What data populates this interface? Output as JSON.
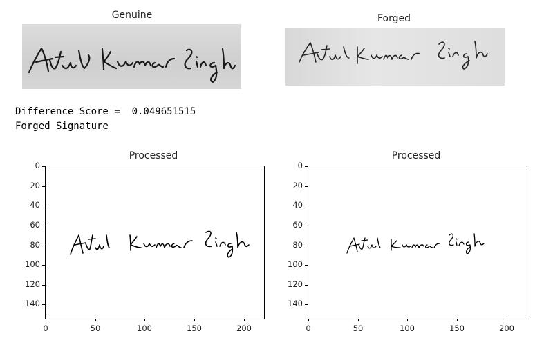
{
  "panels": {
    "genuine_title": "Genuine",
    "forged_title": "Forged",
    "processed_left_title": "Processed",
    "processed_right_title": "Processed",
    "genuine_signature_text": "Atul Kumar Singh",
    "forged_signature_text": "Atul Kumar Singh"
  },
  "output": {
    "score_line": "Difference Score =  0.049651515",
    "verdict_line": "Forged Signature"
  },
  "chart_data": [
    {
      "type": "image",
      "title": "Processed",
      "x_ticks": [
        "0",
        "50",
        "100",
        "150",
        "200"
      ],
      "y_ticks": [
        "0",
        "20",
        "40",
        "60",
        "80",
        "100",
        "120",
        "140"
      ],
      "xlim": [
        0,
        220
      ],
      "ylim": [
        155,
        0
      ]
    },
    {
      "type": "image",
      "title": "Processed",
      "x_ticks": [
        "0",
        "50",
        "100",
        "150",
        "200"
      ],
      "y_ticks": [
        "0",
        "20",
        "40",
        "60",
        "80",
        "100",
        "120",
        "140"
      ],
      "xlim": [
        0,
        220
      ],
      "ylim": [
        155,
        0
      ]
    }
  ]
}
